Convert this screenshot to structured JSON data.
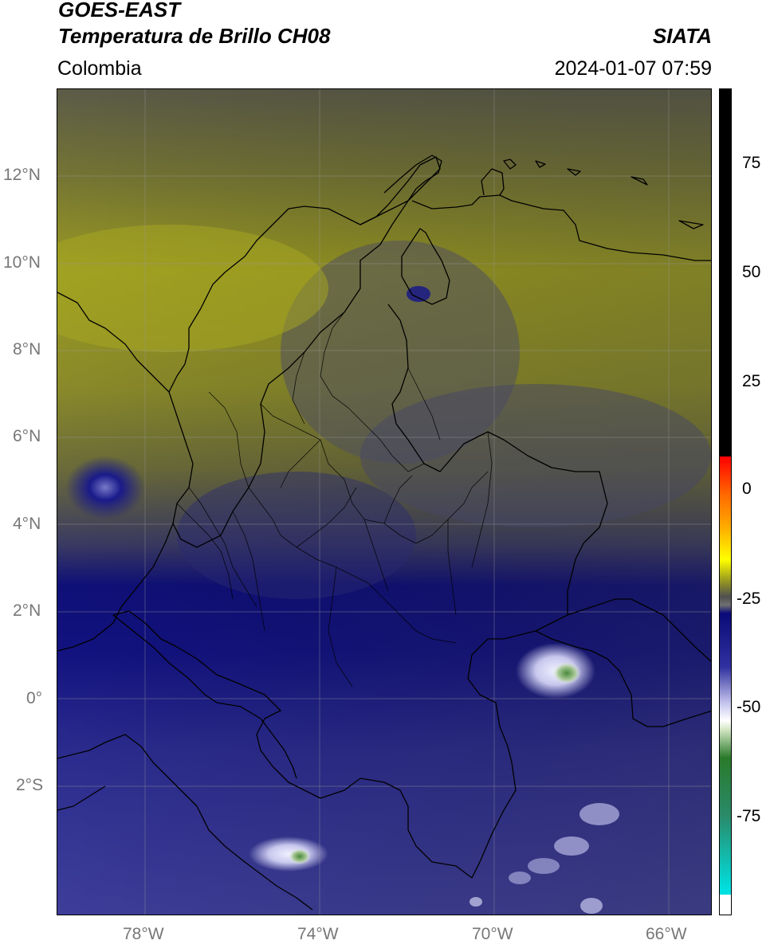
{
  "header": {
    "satellite": "GOES-EAST",
    "product": "Temperatura de Brillo CH08",
    "region": "Colombia",
    "agency": "SIATA",
    "timestamp": "2024-01-07 07:59"
  },
  "map": {
    "lat_labels": [
      "12°N",
      "10°N",
      "8°N",
      "6°N",
      "4°N",
      "2°N",
      "0°",
      "2°S"
    ],
    "lon_labels": [
      "78°W",
      "74°W",
      "70°W",
      "66°W"
    ],
    "extent": {
      "lon": [
        -80,
        -65
      ],
      "lat": [
        -5,
        14
      ]
    }
  },
  "colorbar": {
    "tick_labels": [
      "75",
      "50",
      "25",
      "0",
      "-25",
      "-50",
      "-75"
    ],
    "range": [
      -95,
      90
    ],
    "colors": {
      "warm": "#000000",
      "red": "#ff0000",
      "yellow": "#ffff00",
      "olive": "#9a9a20",
      "gray": "#505050",
      "navy": "#0a0a78",
      "lavender": "#c8c8ee",
      "white": "#ffffff",
      "green": "#2a7a2a",
      "cyan": "#00e0e0"
    }
  }
}
